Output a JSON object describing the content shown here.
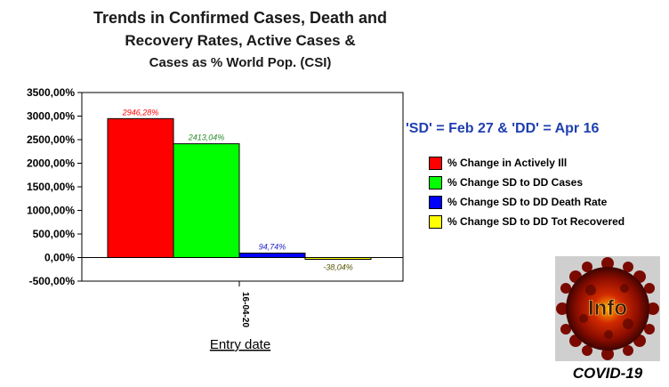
{
  "title_lines": [
    "Trends in Confirmed Cases, Death and",
    "Recovery Rates, Active Cases &",
    "Cases as % World Pop. (CSI)"
  ],
  "note": "'SD' = Feb 27 & 'DD' = Apr 16",
  "logo": {
    "text": "Info",
    "caption": "COVID-19"
  },
  "chart_data": {
    "type": "bar",
    "xlabel": "Entry date",
    "ylabel": "",
    "categories": [
      "16-04-20"
    ],
    "ylim": [
      -500,
      3500
    ],
    "yticks": [
      3500,
      3000,
      2500,
      2000,
      1500,
      1000,
      500,
      0,
      -500
    ],
    "ytick_labels": [
      "3500,00%",
      "3000,00%",
      "2500,00%",
      "2000,00%",
      "1500,00%",
      "1000,00%",
      "500,00%",
      "0,00%",
      "-500,00%"
    ],
    "series": [
      {
        "name": "% Change in Actively Ill",
        "values": [
          2946.28
        ],
        "label": "2946,28%",
        "color": "#ff0000",
        "label_color": "#ff0000"
      },
      {
        "name": "% Change SD to DD Cases",
        "values": [
          2413.04
        ],
        "label": "2413,04%",
        "color": "#00ff00",
        "label_color": "#2a8a2a"
      },
      {
        "name": "% Change SD to DD Death Rate",
        "values": [
          94.74
        ],
        "label": "94,74%",
        "color": "#0000ff",
        "label_color": "#2222cc"
      },
      {
        "name": "% Change SD to DD Tot Recovered",
        "values": [
          -38.04
        ],
        "label": "-38,04%",
        "color": "#ffff00",
        "label_color": "#555500"
      }
    ],
    "grid": false,
    "legend_position": "right"
  }
}
